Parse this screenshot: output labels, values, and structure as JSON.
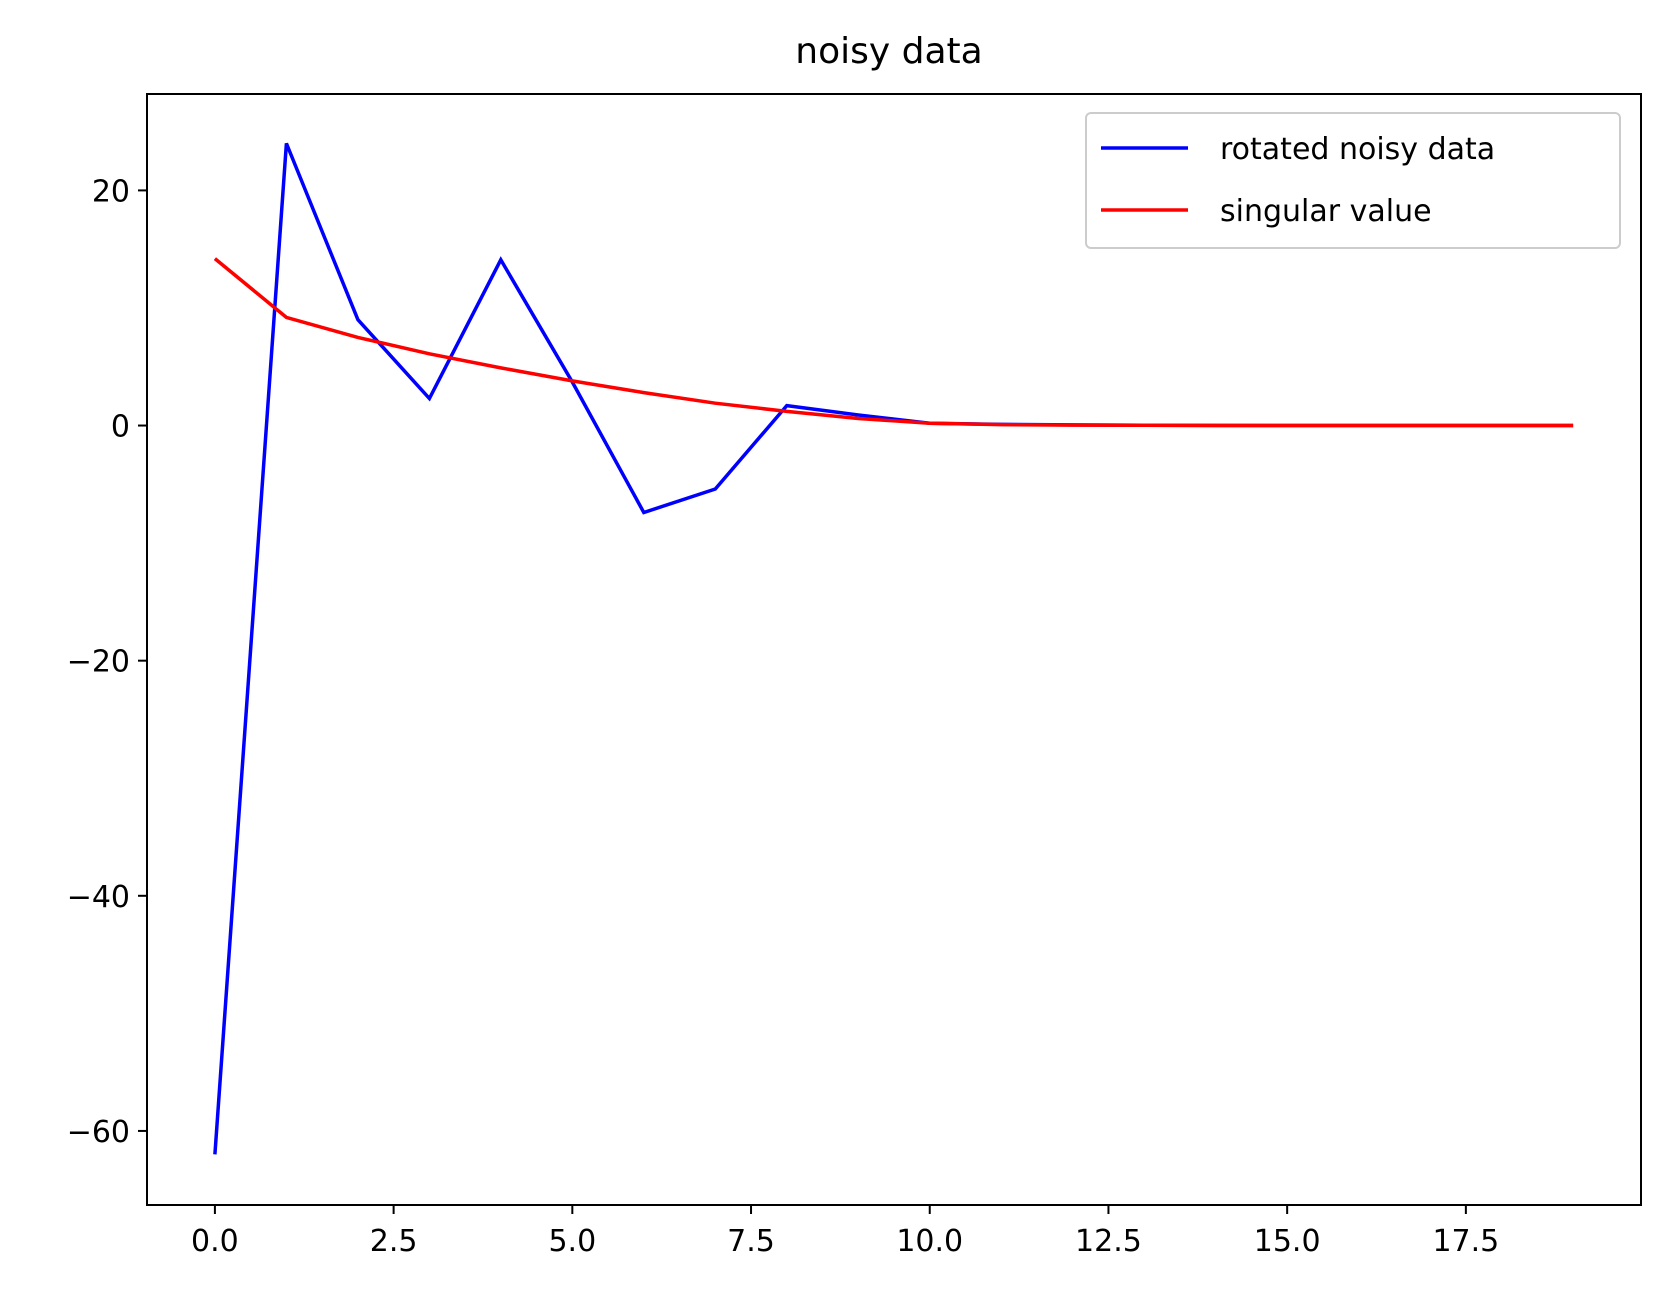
{
  "chart_data": {
    "type": "line",
    "title": "noisy data",
    "xlabel": "",
    "ylabel": "",
    "xlim": [
      -0.95,
      19.95
    ],
    "ylim": [
      -66.3,
      28.2
    ],
    "x_ticks": [
      {
        "value": 0.0,
        "label": "0.0"
      },
      {
        "value": 2.5,
        "label": "2.5"
      },
      {
        "value": 5.0,
        "label": "5.0"
      },
      {
        "value": 7.5,
        "label": "7.5"
      },
      {
        "value": 10.0,
        "label": "10.0"
      },
      {
        "value": 12.5,
        "label": "12.5"
      },
      {
        "value": 15.0,
        "label": "15.0"
      },
      {
        "value": 17.5,
        "label": "17.5"
      }
    ],
    "y_ticks": [
      {
        "value": 20,
        "label": "20"
      },
      {
        "value": 0,
        "label": "0"
      },
      {
        "value": -20,
        "label": "−20"
      },
      {
        "value": -40,
        "label": "−40"
      },
      {
        "value": -60,
        "label": "−60"
      }
    ],
    "grid": false,
    "legend_position": "top-right",
    "x": [
      0,
      1,
      2,
      3,
      4,
      5,
      6,
      7,
      8,
      9,
      10,
      11,
      12,
      13,
      14,
      15,
      16,
      17,
      18,
      19
    ],
    "series": [
      {
        "name": "rotated noisy data",
        "color": "#0000ff",
        "values": [
          -62.0,
          24.0,
          9.0,
          2.3,
          14.1,
          3.7,
          -7.4,
          -5.4,
          1.7,
          0.9,
          0.2,
          0.1,
          0.05,
          0.02,
          0.0,
          0.0,
          0.0,
          0.0,
          0.0,
          0.0
        ]
      },
      {
        "name": "singular value",
        "color": "#ff0000",
        "values": [
          14.2,
          9.2,
          7.5,
          6.1,
          4.9,
          3.8,
          2.8,
          1.9,
          1.2,
          0.6,
          0.2,
          0.08,
          0.04,
          0.02,
          0.01,
          0.0,
          0.0,
          0.0,
          0.0,
          0.0
        ]
      }
    ]
  }
}
